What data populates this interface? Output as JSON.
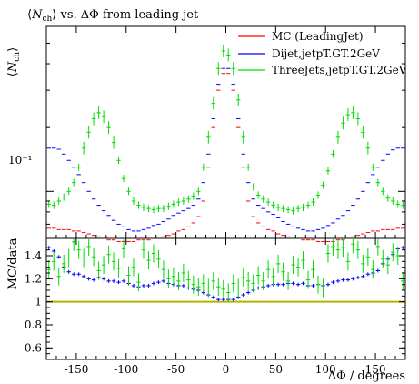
{
  "chart_data": {
    "type": "scatter",
    "title": "⟨N_ch⟩ vs. ΔΦ from leading jet",
    "title_parts": {
      "lhs": "N",
      "lhs_sub": "ch",
      "rest": "vs. ΔΦ from leading jet"
    },
    "ylabel_top_parts": {
      "lhs": "N",
      "lhs_sub": "ch"
    },
    "ylabel_bottom": "MC/data",
    "xlabel": "ΔΦ / degrees",
    "xlim": [
      -180,
      180
    ],
    "top_panel": {
      "yscale": "log",
      "ylim": [
        0.06,
        0.6
      ],
      "y_tick_label": "10⁻¹",
      "y_tick_value": 0.1
    },
    "ratio_panel": {
      "ylim": [
        0.5,
        1.55
      ],
      "y_tick_labels": [
        "0.6",
        "0.8",
        "1",
        "1.2",
        "1.4"
      ],
      "y_tick_values": [
        0.6,
        0.8,
        1.0,
        1.2,
        1.4
      ],
      "reference_line": 1.0
    },
    "x_tick_labels": [
      "-150",
      "-100",
      "-50",
      "0",
      "50",
      "100",
      "150"
    ],
    "x_tick_values": [
      -150,
      -100,
      -50,
      0,
      50,
      100,
      150
    ],
    "legend_position": "top-right",
    "x": [
      -177.5,
      -172.5,
      -167.5,
      -162.5,
      -157.5,
      -152.5,
      -147.5,
      -142.5,
      -137.5,
      -132.5,
      -127.5,
      -122.5,
      -117.5,
      -112.5,
      -107.5,
      -102.5,
      -97.5,
      -92.5,
      -87.5,
      -82.5,
      -77.5,
      -72.5,
      -67.5,
      -62.5,
      -57.5,
      -52.5,
      -47.5,
      -42.5,
      -37.5,
      -32.5,
      -27.5,
      -22.5,
      -17.5,
      -12.5,
      -7.5,
      -2.5,
      2.5,
      7.5,
      12.5,
      17.5,
      22.5,
      27.5,
      32.5,
      37.5,
      42.5,
      47.5,
      52.5,
      57.5,
      62.5,
      67.5,
      72.5,
      77.5,
      82.5,
      87.5,
      92.5,
      97.5,
      102.5,
      107.5,
      112.5,
      117.5,
      122.5,
      127.5,
      132.5,
      137.5,
      142.5,
      147.5,
      152.5,
      157.5,
      162.5,
      167.5,
      172.5,
      177.5
    ],
    "series": [
      {
        "name": "MC (LeadingJet)",
        "color": "#ff0000",
        "values": [
          0.067,
          0.067,
          0.066,
          0.066,
          0.066,
          0.065,
          0.065,
          0.064,
          0.063,
          0.062,
          0.061,
          0.06,
          0.059,
          0.059,
          0.058,
          0.058,
          0.058,
          0.058,
          0.059,
          0.059,
          0.059,
          0.06,
          0.06,
          0.061,
          0.062,
          0.063,
          0.065,
          0.066,
          0.068,
          0.071,
          0.076,
          0.09,
          0.13,
          0.2,
          0.3,
          0.36,
          0.36,
          0.3,
          0.2,
          0.13,
          0.09,
          0.076,
          0.071,
          0.068,
          0.066,
          0.065,
          0.063,
          0.062,
          0.061,
          0.06,
          0.06,
          0.059,
          0.059,
          0.059,
          0.058,
          0.058,
          0.058,
          0.058,
          0.059,
          0.059,
          0.06,
          0.061,
          0.062,
          0.063,
          0.064,
          0.065,
          0.065,
          0.066,
          0.066,
          0.066,
          0.067,
          0.067
        ]
      },
      {
        "name": "Dijet,jetpT.GT.2GeV",
        "color": "#0000ff",
        "values": [
          0.16,
          0.16,
          0.158,
          0.15,
          0.14,
          0.13,
          0.12,
          0.11,
          0.1,
          0.092,
          0.086,
          0.081,
          0.077,
          0.073,
          0.07,
          0.068,
          0.066,
          0.065,
          0.065,
          0.066,
          0.067,
          0.069,
          0.07,
          0.072,
          0.074,
          0.077,
          0.079,
          0.081,
          0.083,
          0.086,
          0.092,
          0.11,
          0.15,
          0.22,
          0.32,
          0.38,
          0.38,
          0.32,
          0.22,
          0.15,
          0.11,
          0.092,
          0.086,
          0.083,
          0.08,
          0.078,
          0.075,
          0.072,
          0.07,
          0.068,
          0.067,
          0.066,
          0.065,
          0.065,
          0.066,
          0.067,
          0.069,
          0.071,
          0.074,
          0.077,
          0.081,
          0.086,
          0.092,
          0.1,
          0.11,
          0.12,
          0.13,
          0.14,
          0.15,
          0.157,
          0.16,
          0.16
        ]
      },
      {
        "name": "ThreeJets,jetpT.GT.2GeV",
        "color": "#00dd00",
        "values": [
          0.087,
          0.086,
          0.09,
          0.094,
          0.1,
          0.11,
          0.13,
          0.16,
          0.19,
          0.22,
          0.235,
          0.225,
          0.2,
          0.17,
          0.14,
          0.115,
          0.1,
          0.09,
          0.086,
          0.084,
          0.083,
          0.082,
          0.083,
          0.083,
          0.085,
          0.087,
          0.089,
          0.09,
          0.092,
          0.095,
          0.1,
          0.13,
          0.18,
          0.26,
          0.38,
          0.46,
          0.44,
          0.38,
          0.27,
          0.18,
          0.13,
          0.105,
          0.096,
          0.092,
          0.089,
          0.086,
          0.084,
          0.083,
          0.082,
          0.081,
          0.083,
          0.084,
          0.086,
          0.089,
          0.096,
          0.107,
          0.125,
          0.15,
          0.18,
          0.21,
          0.23,
          0.235,
          0.22,
          0.19,
          0.16,
          0.13,
          0.11,
          0.1,
          0.093,
          0.09,
          0.087,
          0.086
        ]
      }
    ],
    "ratio_series": [
      {
        "name": "Dijet,jetpT.GT.2GeV",
        "color": "#0000ff",
        "values": [
          1.47,
          1.44,
          1.39,
          1.3,
          1.26,
          1.24,
          1.24,
          1.22,
          1.2,
          1.19,
          1.21,
          1.2,
          1.18,
          1.18,
          1.17,
          1.18,
          1.16,
          1.14,
          1.13,
          1.14,
          1.14,
          1.16,
          1.17,
          1.18,
          1.16,
          1.15,
          1.14,
          1.14,
          1.12,
          1.11,
          1.1,
          1.08,
          1.06,
          1.04,
          1.02,
          1.02,
          1.02,
          1.02,
          1.04,
          1.06,
          1.08,
          1.1,
          1.12,
          1.13,
          1.14,
          1.15,
          1.15,
          1.15,
          1.16,
          1.16,
          1.15,
          1.16,
          1.14,
          1.14,
          1.15,
          1.14,
          1.15,
          1.17,
          1.18,
          1.19,
          1.19,
          1.2,
          1.21,
          1.22,
          1.24,
          1.25,
          1.27,
          1.33,
          1.37,
          1.41,
          1.46,
          1.47
        ]
      },
      {
        "name": "ThreeJets,jetpT.GT.2GeV",
        "color": "#00dd00",
        "values": [
          1.28,
          1.35,
          1.22,
          1.33,
          1.38,
          1.52,
          1.45,
          1.38,
          1.48,
          1.39,
          1.27,
          1.32,
          1.41,
          1.35,
          1.29,
          1.46,
          1.23,
          1.3,
          1.17,
          1.45,
          1.36,
          1.42,
          1.37,
          1.28,
          1.2,
          1.22,
          1.18,
          1.25,
          1.19,
          1.15,
          1.13,
          1.16,
          1.12,
          1.18,
          1.13,
          1.11,
          1.08,
          1.16,
          1.12,
          1.21,
          1.18,
          1.16,
          1.23,
          1.18,
          1.28,
          1.22,
          1.33,
          1.26,
          1.18,
          1.32,
          1.3,
          1.36,
          1.19,
          1.28,
          1.15,
          1.12,
          1.42,
          1.48,
          1.45,
          1.47,
          1.35,
          1.5,
          1.45,
          1.33,
          1.39,
          1.28,
          1.48,
          1.37,
          1.32,
          1.43,
          1.4,
          1.18
        ]
      }
    ],
    "mc_ratio_color": "#b4b400"
  }
}
